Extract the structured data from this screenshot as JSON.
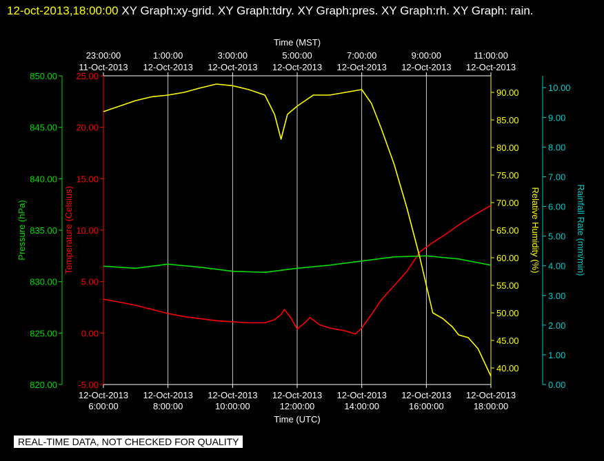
{
  "header": {
    "datetime": "12-oct-2013,18:00:00",
    "graphs": "XY Graph:xy-grid.  XY Graph:tdry.  XY Graph:pres.  XY Graph:rh.  XY Graph: rain."
  },
  "disclaimer": "REAL-TIME DATA, NOT CHECKED FOR QUALITY",
  "colors": {
    "background": "#000000",
    "grid": "#ffffff",
    "pressure": "#00dd00",
    "temperature": "#ff0000",
    "humidity": "#ffff00",
    "rain": "#00cccc"
  },
  "chart_data": {
    "type": "line",
    "grid": true,
    "x_bottom": {
      "label": "Time (UTC)",
      "ticks": [
        {
          "date": "12-Oct-2013",
          "time": "6:00:00"
        },
        {
          "date": "12-Oct-2013",
          "time": "8:00:00"
        },
        {
          "date": "12-Oct-2013",
          "time": "10:00:00"
        },
        {
          "date": "12-Oct-2013",
          "time": "12:00:00"
        },
        {
          "date": "12-Oct-2013",
          "time": "14:00:00"
        },
        {
          "date": "12-Oct-2013",
          "time": "16:00:00"
        },
        {
          "date": "12-Oct-2013",
          "time": "18:00:00"
        }
      ]
    },
    "x_top": {
      "label": "Time (MST)",
      "ticks": [
        {
          "time": "23:00:00",
          "date": "11-Oct-2013"
        },
        {
          "time": "1:00:00",
          "date": "12-Oct-2013"
        },
        {
          "time": "3:00:00",
          "date": "12-Oct-2013"
        },
        {
          "time": "5:00:00",
          "date": "12-Oct-2013"
        },
        {
          "time": "7:00:00",
          "date": "12-Oct-2013"
        },
        {
          "time": "9:00:00",
          "date": "12-Oct-2013"
        },
        {
          "time": "11:00:00",
          "date": "12-Oct-2013"
        }
      ]
    },
    "axes": [
      {
        "key": "pressure",
        "label": "Pressure (hPa)",
        "range": [
          820,
          850
        ],
        "ticks": [
          "820.00",
          "825.00",
          "830.00",
          "835.00",
          "840.00",
          "845.00",
          "850.00"
        ]
      },
      {
        "key": "temperature",
        "label": "Temperature (Celsius)",
        "range": [
          -5,
          25
        ],
        "ticks": [
          "-5.00",
          "0.00",
          "5.00",
          "10.00",
          "15.00",
          "20.00",
          "25.00"
        ]
      },
      {
        "key": "humidity",
        "label": "Relative Humidity (%)",
        "range": [
          37,
          93
        ],
        "ticks": [
          "40.00",
          "45.00",
          "50.00",
          "55.00",
          "60.00",
          "65.00",
          "70.00",
          "75.00",
          "80.00",
          "85.00",
          "90.00"
        ]
      },
      {
        "key": "rain",
        "label": "Rainfall Rate (mm/min)",
        "range": [
          0,
          10.4
        ],
        "ticks": [
          "0.00",
          "1.00",
          "2.00",
          "3.00",
          "4.00",
          "5.00",
          "6.00",
          "7.00",
          "8.00",
          "9.00",
          "10.00"
        ]
      }
    ],
    "x_range_hours": [
      6,
      18
    ],
    "series": [
      {
        "key": "temperature",
        "points": [
          [
            6,
            3.3
          ],
          [
            6.5,
            3.0
          ],
          [
            7,
            2.7
          ],
          [
            7.5,
            2.3
          ],
          [
            8,
            1.9
          ],
          [
            8.5,
            1.6
          ],
          [
            9,
            1.4
          ],
          [
            9.5,
            1.2
          ],
          [
            10,
            1.1
          ],
          [
            10.5,
            1.0
          ],
          [
            11,
            1.0
          ],
          [
            11.3,
            1.3
          ],
          [
            11.5,
            1.8
          ],
          [
            11.6,
            2.3
          ],
          [
            11.8,
            1.5
          ],
          [
            12,
            0.4
          ],
          [
            12.2,
            0.9
          ],
          [
            12.4,
            1.5
          ],
          [
            12.7,
            0.8
          ],
          [
            13,
            0.5
          ],
          [
            13.5,
            0.2
          ],
          [
            13.8,
            -0.1
          ],
          [
            14,
            0.5
          ],
          [
            14.3,
            1.8
          ],
          [
            14.6,
            3.2
          ],
          [
            15,
            4.6
          ],
          [
            15.4,
            6.0
          ],
          [
            15.8,
            7.9
          ],
          [
            16.2,
            8.8
          ],
          [
            16.6,
            9.6
          ],
          [
            17,
            10.5
          ],
          [
            17.5,
            11.5
          ],
          [
            18,
            12.4
          ]
        ]
      },
      {
        "key": "pressure",
        "points": [
          [
            6,
            831.5
          ],
          [
            7,
            831.3
          ],
          [
            8,
            831.7
          ],
          [
            9,
            831.4
          ],
          [
            10,
            831.0
          ],
          [
            11,
            830.9
          ],
          [
            12,
            831.3
          ],
          [
            13,
            831.6
          ],
          [
            14,
            832.0
          ],
          [
            15,
            832.4
          ],
          [
            16,
            832.5
          ],
          [
            17,
            832.2
          ],
          [
            18,
            831.6
          ]
        ]
      },
      {
        "key": "humidity",
        "points": [
          [
            6,
            86.5
          ],
          [
            6.5,
            87.5
          ],
          [
            7,
            88.5
          ],
          [
            7.5,
            89.2
          ],
          [
            8,
            89.5
          ],
          [
            8.5,
            90.0
          ],
          [
            9,
            90.8
          ],
          [
            9.5,
            91.5
          ],
          [
            10,
            91.2
          ],
          [
            10.5,
            90.5
          ],
          [
            11,
            89.5
          ],
          [
            11.3,
            86
          ],
          [
            11.5,
            81.5
          ],
          [
            11.7,
            86
          ],
          [
            12,
            87.5
          ],
          [
            12.5,
            89.5
          ],
          [
            13,
            89.5
          ],
          [
            13.5,
            90.0
          ],
          [
            14,
            90.5
          ],
          [
            14.3,
            88
          ],
          [
            14.6,
            83.5
          ],
          [
            15,
            77
          ],
          [
            15.4,
            69
          ],
          [
            15.8,
            60
          ],
          [
            16,
            55
          ],
          [
            16.2,
            50
          ],
          [
            16.5,
            49
          ],
          [
            16.8,
            47.5
          ],
          [
            17,
            46
          ],
          [
            17.3,
            45.5
          ],
          [
            17.6,
            43.5
          ],
          [
            18,
            38.5
          ]
        ]
      }
    ]
  }
}
